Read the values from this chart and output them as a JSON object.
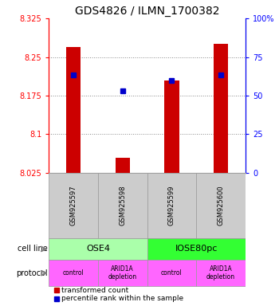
{
  "title": "GDS4826 / ILMN_1700382",
  "samples": [
    "GSM925597",
    "GSM925598",
    "GSM925599",
    "GSM925600"
  ],
  "bar_base": 8.025,
  "bar_tops": [
    8.27,
    8.055,
    8.205,
    8.275
  ],
  "percentile_values": [
    8.215,
    8.185,
    8.205,
    8.215
  ],
  "ylim": [
    8.025,
    8.325
  ],
  "yticks": [
    8.025,
    8.1,
    8.175,
    8.25,
    8.325
  ],
  "ytick_labels": [
    "8.025",
    "8.1",
    "8.175",
    "8.25",
    "8.325"
  ],
  "right_yticks": [
    0,
    25,
    50,
    75,
    100
  ],
  "right_ytick_labels": [
    "0",
    "25",
    "50",
    "75",
    "100%"
  ],
  "bar_color": "#cc0000",
  "percentile_color": "#0000cc",
  "cell_line_labels": [
    "OSE4",
    "IOSE80pc"
  ],
  "cell_line_spans": [
    [
      0,
      2
    ],
    [
      2,
      4
    ]
  ],
  "cell_line_colors": [
    "#aaffaa",
    "#33ff33"
  ],
  "protocol_labels": [
    "control",
    "ARID1A\ndepletion",
    "control",
    "ARID1A\ndepletion"
  ],
  "protocol_color": "#ff66ff",
  "sample_bg_color": "#cccccc",
  "legend_bar_label": "transformed count",
  "legend_pct_label": "percentile rank within the sample",
  "row_label_cell_line": "cell line",
  "row_label_protocol": "protocol",
  "grid_color": "#888888",
  "title_fontsize": 10,
  "axis_fontsize": 7,
  "bar_width": 0.3
}
